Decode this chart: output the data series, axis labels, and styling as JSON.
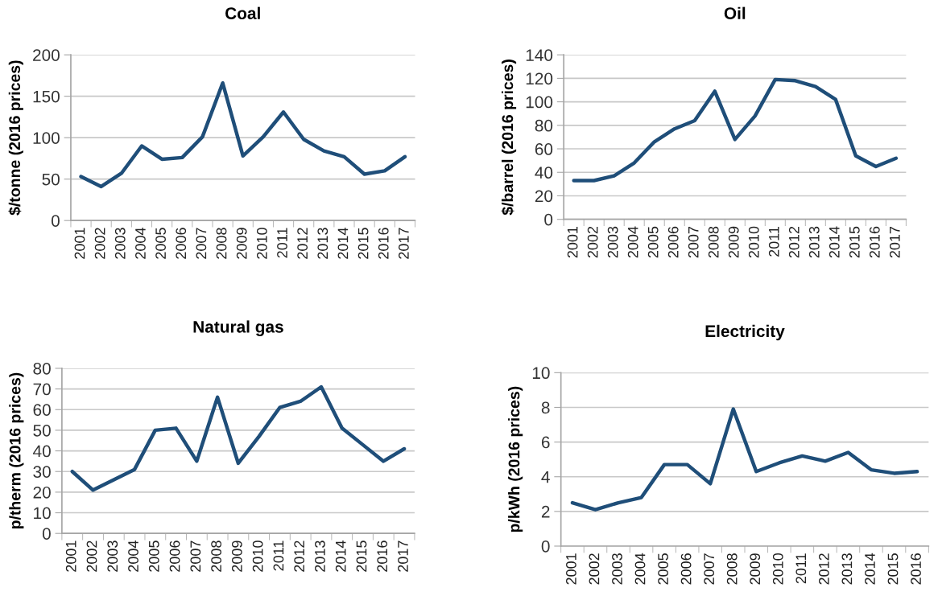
{
  "chart_data": [
    {
      "type": "line",
      "title": "Coal",
      "ylabel": "$/tonne (2016 prices)",
      "categories": [
        "2001",
        "2002",
        "2003",
        "2004",
        "2005",
        "2006",
        "2007",
        "2008",
        "2009",
        "2010",
        "2011",
        "2012",
        "2013",
        "2014",
        "2015",
        "2016",
        "2017"
      ],
      "series": [
        {
          "color": "#1f4e79",
          "values": [
            53,
            41,
            57,
            90,
            74,
            76,
            101,
            166,
            78,
            101,
            131,
            98,
            84,
            77,
            56,
            60,
            77
          ]
        }
      ],
      "ylim": [
        0,
        200
      ],
      "yticks": [
        0,
        50,
        100,
        150,
        200
      ],
      "grid": "y",
      "line_style": "solid"
    },
    {
      "type": "line",
      "title": "Oil",
      "ylabel": "$/barrel (2016 prices)",
      "categories": [
        "2001",
        "2002",
        "2003",
        "2004",
        "2005",
        "2006",
        "2007",
        "2008",
        "2009",
        "2010",
        "2011",
        "2012",
        "2013",
        "2014",
        "2015",
        "2016",
        "2017"
      ],
      "series": [
        {
          "color": "#1f4e79",
          "values": [
            33,
            33,
            37,
            48,
            66,
            77,
            84,
            109,
            68,
            88,
            119,
            118,
            113,
            102,
            54,
            45,
            52
          ]
        }
      ],
      "ylim": [
        0,
        140
      ],
      "yticks": [
        0,
        20,
        40,
        60,
        80,
        100,
        120,
        140
      ],
      "grid": "y",
      "line_style": "solid"
    },
    {
      "type": "line",
      "title": "Natural gas",
      "ylabel": "p/therm (2016 prices)",
      "categories": [
        "2001",
        "2002",
        "2003",
        "2004",
        "2005",
        "2006",
        "2007",
        "2008",
        "2009",
        "2010",
        "2011",
        "2012",
        "2013",
        "2014",
        "2015",
        "2016",
        "2017"
      ],
      "series": [
        {
          "color": "#1f4e79",
          "values": [
            30,
            21,
            26,
            31,
            50,
            51,
            35,
            66,
            34,
            47,
            61,
            64,
            71,
            51,
            43,
            35,
            41
          ]
        }
      ],
      "ylim": [
        0,
        80
      ],
      "yticks": [
        0,
        10,
        20,
        30,
        40,
        50,
        60,
        70,
        80
      ],
      "grid": "y",
      "line_style": "solid"
    },
    {
      "type": "line",
      "title": "Electricity",
      "ylabel": "p/kWh (2016 prices)",
      "categories": [
        "2001",
        "2002",
        "2003",
        "2004",
        "2005",
        "2006",
        "2007",
        "2008",
        "2009",
        "2010",
        "2011",
        "2012",
        "2013",
        "2014",
        "2015",
        "2016"
      ],
      "series": [
        {
          "color": "#1f4e79",
          "values": [
            2.5,
            2.1,
            2.5,
            2.8,
            4.7,
            4.7,
            3.6,
            7.9,
            4.3,
            4.8,
            5.2,
            4.9,
            5.4,
            4.4,
            4.2,
            4.3
          ]
        }
      ],
      "ylim": [
        0,
        10
      ],
      "yticks": [
        0,
        2,
        4,
        6,
        8,
        10
      ],
      "grid": "y",
      "line_style": "solid"
    }
  ]
}
